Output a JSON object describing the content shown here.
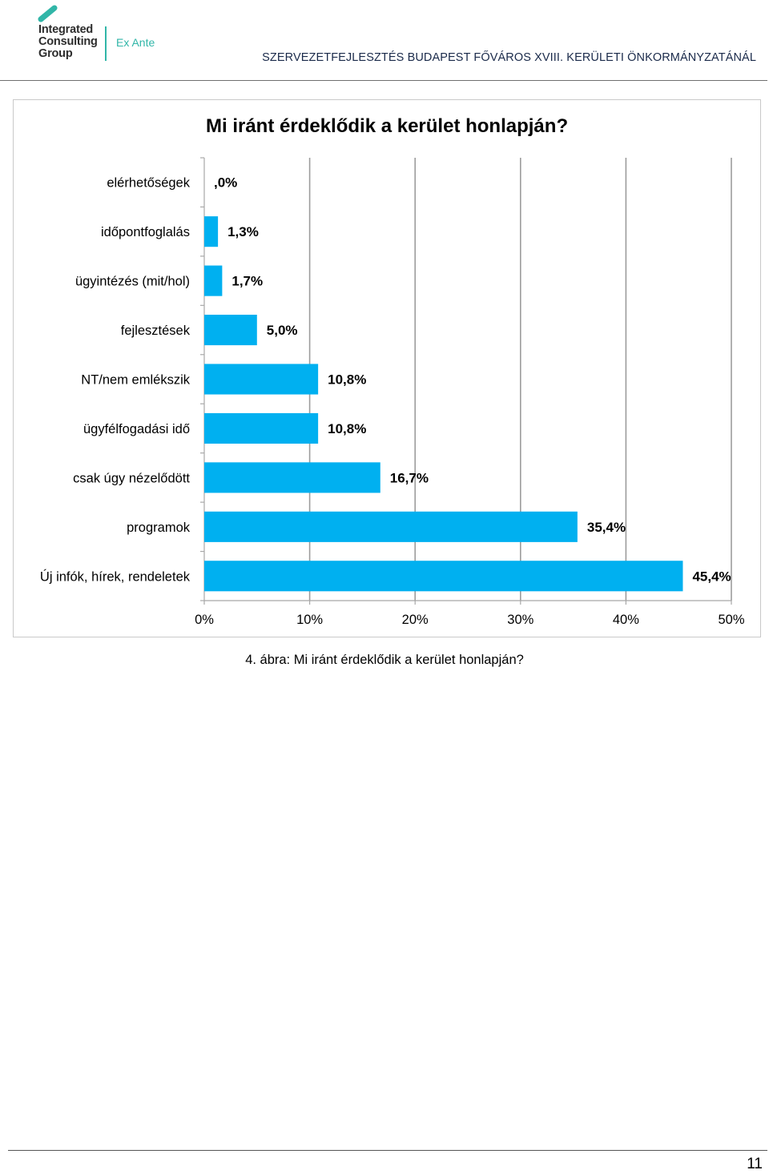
{
  "header": {
    "logo_lines": [
      "Integrated",
      "Consulting",
      "Group"
    ],
    "logo_sub": "Ex Ante",
    "title": "SZERVEZETFEJLESZTÉS BUDAPEST FŐVÁROS XVIII. KERÜLETI ÖNKORMÁNYZATÁNÁL",
    "brand_color": "#31b6a8"
  },
  "chart_data": {
    "type": "bar",
    "orientation": "horizontal",
    "title": "Mi iránt érdeklődik a kerület honlapján?",
    "categories": [
      "elérhetőségek",
      "időpontfoglalás",
      "ügyintézés (mit/hol)",
      "fejlesztések",
      "NT/nem emlékszik",
      "ügyfélfogadási idő",
      "csak úgy nézelődött",
      "programok",
      "Új infók, hírek, rendeletek"
    ],
    "values": [
      0.0,
      1.3,
      1.7,
      5.0,
      10.8,
      10.8,
      16.7,
      35.4,
      45.4
    ],
    "data_labels": [
      ",0%",
      "1,3%",
      "1,7%",
      "5,0%",
      "10,8%",
      "10,8%",
      "16,7%",
      "35,4%",
      "45,4%"
    ],
    "xlim": [
      0,
      50
    ],
    "x_ticks": [
      0,
      10,
      20,
      30,
      40,
      50
    ],
    "x_tick_labels": [
      "0%",
      "10%",
      "20%",
      "30%",
      "40%",
      "50%"
    ],
    "grid": "vertical",
    "legend": "none",
    "bar_color": "#00b0f0"
  },
  "caption": "4. ábra: Mi iránt érdeklődik a kerület honlapján?",
  "page_number": "11"
}
